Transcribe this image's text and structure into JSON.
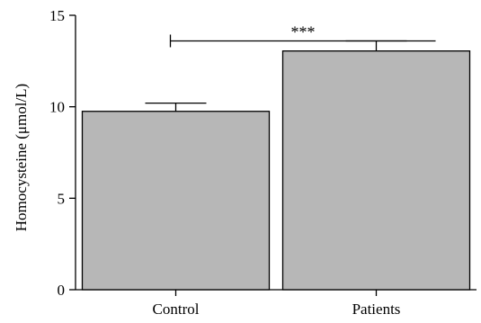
{
  "chart_data": {
    "type": "bar",
    "categories": [
      "Control",
      "Patients"
    ],
    "values": [
      9.75,
      13.05
    ],
    "errors": [
      0.45,
      0.55
    ],
    "ylabel": "Homocysteine (μmol/L)",
    "ylim": [
      0,
      15
    ],
    "yticks": [
      0,
      5,
      10,
      15
    ],
    "significance": {
      "text": "***",
      "between": [
        0,
        1
      ],
      "y": 13.6
    },
    "colors": {
      "bar": "#b7b7b7",
      "stroke": "#000000"
    },
    "grid": false
  }
}
